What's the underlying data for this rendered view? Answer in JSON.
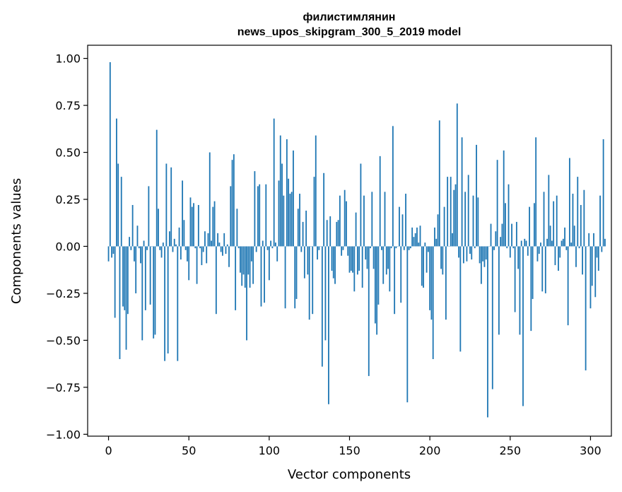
{
  "chart_data": {
    "type": "bar",
    "title_line1": "филистимлянин",
    "title_line2": "news_upos_skipgram_300_5_2019 model",
    "xlabel": "Vector components",
    "ylabel": "Components values",
    "xlim": [
      -13,
      313
    ],
    "ylim": [
      -1.01,
      1.07
    ],
    "xticks": [
      0,
      50,
      100,
      150,
      200,
      250,
      300
    ],
    "yticks": [
      1.0,
      0.75,
      0.5,
      0.25,
      0.0,
      -0.25,
      -0.5,
      -0.75,
      -1.0
    ],
    "ytick_labels": [
      "1.00",
      "0.75",
      "0.50",
      "0.25",
      "0.00",
      "−0.25",
      "−0.50",
      "−0.75",
      "−1.00"
    ],
    "grid": false,
    "bar_color": "#1f77b4",
    "x_start": 0,
    "values": [
      -0.08,
      0.98,
      -0.06,
      -0.04,
      -0.38,
      0.68,
      0.44,
      -0.6,
      0.37,
      -0.32,
      -0.34,
      -0.55,
      -0.36,
      0.05,
      -0.02,
      0.22,
      -0.08,
      -0.25,
      0.11,
      -0.01,
      -0.09,
      -0.5,
      0.03,
      -0.34,
      -0.02,
      0.32,
      -0.31,
      0.0,
      -0.49,
      -0.47,
      0.62,
      0.2,
      -0.02,
      -0.06,
      0.02,
      -0.61,
      0.44,
      -0.57,
      0.08,
      0.42,
      -0.03,
      0.04,
      0.01,
      -0.61,
      0.1,
      -0.07,
      0.35,
      0.14,
      -0.02,
      -0.08,
      -0.18,
      0.26,
      0.21,
      0.23,
      -0.01,
      -0.2,
      0.22,
      -0.01,
      -0.1,
      -0.03,
      0.08,
      -0.09,
      0.07,
      0.5,
      0.03,
      0.21,
      0.24,
      -0.36,
      0.07,
      0.02,
      -0.03,
      -0.05,
      0.07,
      -0.04,
      0.01,
      -0.11,
      0.32,
      0.46,
      0.49,
      -0.34,
      0.2,
      -0.01,
      -0.14,
      -0.21,
      -0.15,
      -0.22,
      -0.5,
      -0.15,
      -0.22,
      -0.08,
      -0.2,
      0.4,
      -0.03,
      0.32,
      0.33,
      -0.32,
      0.03,
      -0.3,
      0.33,
      -0.02,
      -0.18,
      0.03,
      -0.01,
      0.68,
      0.02,
      -0.08,
      0.35,
      0.59,
      0.44,
      0.27,
      -0.33,
      0.57,
      0.36,
      0.28,
      0.29,
      0.51,
      -0.33,
      -0.28,
      0.2,
      0.28,
      -0.03,
      0.13,
      -0.17,
      0.19,
      -0.15,
      -0.39,
      0.0,
      -0.36,
      0.37,
      0.59,
      -0.07,
      -0.02,
      0.0,
      -0.64,
      0.39,
      -0.5,
      0.14,
      -0.84,
      0.16,
      -0.13,
      -0.17,
      -0.2,
      0.13,
      0.14,
      0.27,
      -0.05,
      -0.02,
      0.3,
      0.24,
      -0.05,
      -0.14,
      -0.13,
      -0.14,
      -0.24,
      0.18,
      -0.15,
      -0.13,
      0.44,
      -0.22,
      0.27,
      -0.07,
      -0.12,
      -0.69,
      -0.01,
      0.29,
      -0.12,
      -0.41,
      -0.47,
      -0.31,
      0.48,
      -0.02,
      -0.2,
      0.29,
      -0.15,
      -0.12,
      -0.24,
      -0.01,
      0.64,
      -0.36,
      -0.01,
      0.0,
      0.21,
      -0.3,
      0.17,
      -0.02,
      0.28,
      -0.83,
      -0.02,
      -0.01,
      0.1,
      0.05,
      0.07,
      0.1,
      0.02,
      0.11,
      -0.21,
      -0.22,
      0.02,
      -0.14,
      -0.03,
      -0.34,
      -0.39,
      -0.6,
      0.1,
      0.04,
      0.17,
      0.67,
      -0.12,
      -0.15,
      0.21,
      -0.39,
      0.37,
      0.0,
      0.37,
      0.07,
      0.3,
      0.33,
      0.76,
      -0.06,
      -0.56,
      0.58,
      -0.09,
      0.29,
      -0.08,
      0.38,
      -0.04,
      -0.07,
      0.27,
      -0.01,
      0.54,
      0.26,
      -0.09,
      -0.2,
      -0.08,
      -0.11,
      -0.07,
      -0.91,
      0.0,
      0.12,
      -0.76,
      -0.02,
      0.08,
      0.46,
      -0.47,
      0.05,
      0.12,
      0.51,
      0.23,
      -0.01,
      0.33,
      -0.06,
      0.12,
      -0.01,
      -0.35,
      0.13,
      -0.12,
      -0.47,
      0.03,
      -0.85,
      0.04,
      0.03,
      -0.05,
      0.21,
      -0.45,
      -0.28,
      0.23,
      0.58,
      -0.08,
      -0.04,
      0.02,
      -0.24,
      0.29,
      -0.25,
      0.04,
      0.38,
      0.11,
      0.03,
      0.24,
      -0.1,
      0.27,
      -0.13,
      -0.06,
      0.03,
      0.04,
      0.1,
      -0.02,
      -0.42,
      0.47,
      0.02,
      0.28,
      0.11,
      -0.11,
      0.37,
      -0.01,
      0.22,
      -0.15,
      0.3,
      -0.66,
      0.0,
      0.07,
      -0.33,
      -0.21,
      0.07,
      -0.27,
      -0.06,
      -0.13,
      0.27,
      -0.03,
      0.57,
      0.04
    ]
  }
}
